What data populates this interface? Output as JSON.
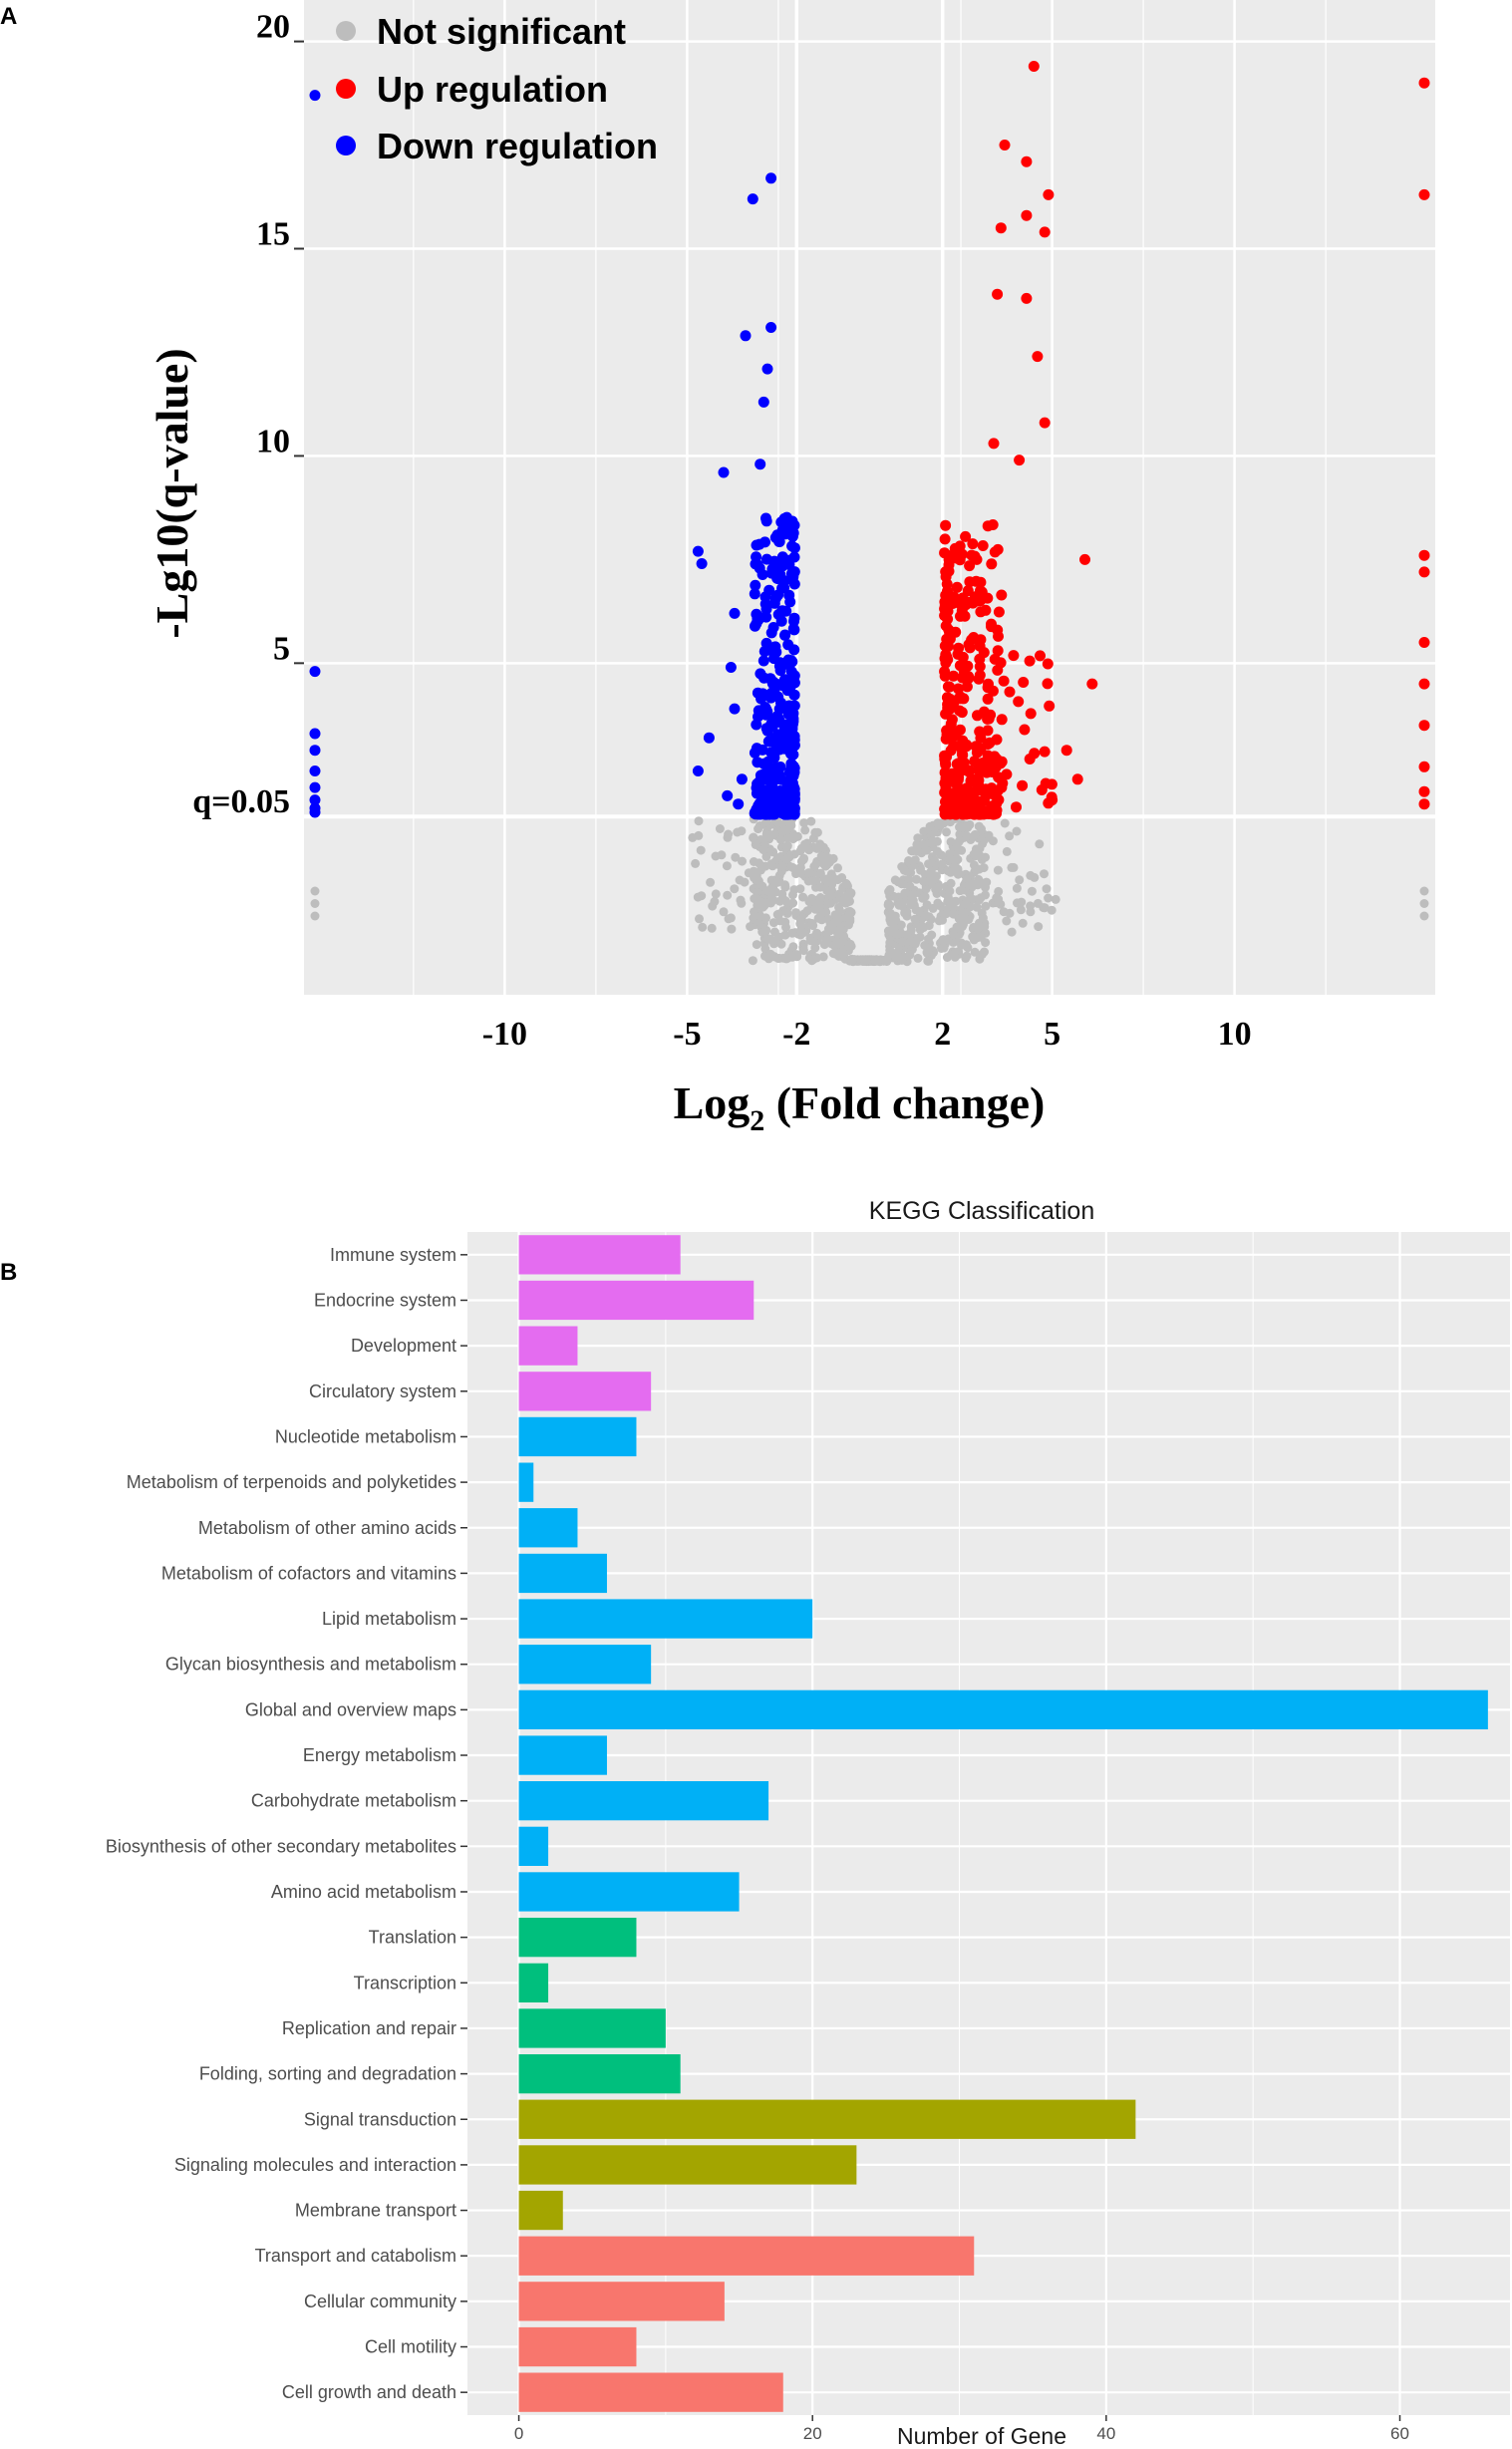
{
  "panels": {
    "a": "A",
    "b": "B"
  },
  "colors": {
    "panel_bg": "#ebebeb",
    "grid": "#ffffff",
    "not_significant": "#bdbdbd",
    "up": "#ff0000",
    "down": "#0000ff",
    "organismal": "#e46cf0",
    "metabolism": "#00b0f6",
    "genetic": "#00bf7d",
    "environmental": "#a3a500",
    "cellular": "#f8766d"
  },
  "chart_data": [
    {
      "id": "volcano",
      "type": "scatter",
      "title": "",
      "xlabel_main": "Log",
      "xlabel_sub": "2",
      "xlabel_rest": " (Fold change)",
      "ylabel": "-Lg10(q-value)",
      "xlim": [
        -15.5,
        15.5
      ],
      "ylim": [
        -3,
        21
      ],
      "x_ticks": [
        "-10",
        "-5",
        "-2",
        "2",
        "5",
        "10"
      ],
      "x_tick_values": [
        -10,
        -5,
        -2,
        2,
        5,
        10
      ],
      "y_ticks": [
        "5",
        "10",
        "15",
        "20"
      ],
      "y_tick_values": [
        5,
        10,
        15,
        20
      ],
      "threshold_label": "q=0.05",
      "threshold_value": 1.3,
      "fold_thresholds": [
        -2,
        2
      ],
      "legend": [
        {
          "label": "Not significant",
          "color": "#bdbdbd"
        },
        {
          "label": "Up regulation",
          "color": "#ff0000"
        },
        {
          "label": "Down regulation",
          "color": "#0000ff"
        }
      ],
      "highlight_points": {
        "down": [
          [
            -15.2,
            18.7
          ],
          [
            -15.2,
            4.8
          ],
          [
            -15.2,
            3.3
          ],
          [
            -15.2,
            2.9
          ],
          [
            -15.2,
            2.4
          ],
          [
            -15.2,
            2.0
          ],
          [
            -15.2,
            1.7
          ],
          [
            -15.2,
            1.5
          ],
          [
            -15.2,
            1.4
          ],
          [
            -2.7,
            16.7
          ],
          [
            -3.2,
            16.2
          ],
          [
            -3.4,
            12.9
          ],
          [
            -2.7,
            13.1
          ],
          [
            -2.8,
            12.1
          ],
          [
            -2.9,
            11.3
          ],
          [
            -4.0,
            9.6
          ],
          [
            -3.0,
            9.8
          ],
          [
            -4.7,
            7.7
          ],
          [
            -4.6,
            7.4
          ],
          [
            -3.7,
            6.2
          ],
          [
            -3.8,
            4.9
          ],
          [
            -3.7,
            3.9
          ],
          [
            -4.4,
            3.2
          ],
          [
            -4.7,
            2.4
          ],
          [
            -3.5,
            2.2
          ],
          [
            -3.9,
            1.8
          ],
          [
            -3.6,
            1.6
          ]
        ],
        "up": [
          [
            4.5,
            19.4
          ],
          [
            15.2,
            19.0
          ],
          [
            15.2,
            16.3
          ],
          [
            4.9,
            16.3
          ],
          [
            3.7,
            17.5
          ],
          [
            4.3,
            17.1
          ],
          [
            4.3,
            15.8
          ],
          [
            3.6,
            15.5
          ],
          [
            4.8,
            15.4
          ],
          [
            3.5,
            13.9
          ],
          [
            4.3,
            13.8
          ],
          [
            4.6,
            12.4
          ],
          [
            4.8,
            10.8
          ],
          [
            4.1,
            9.9
          ],
          [
            3.4,
            10.3
          ],
          [
            5.9,
            7.5
          ],
          [
            15.2,
            7.6
          ],
          [
            15.2,
            7.2
          ],
          [
            6.1,
            4.5
          ],
          [
            15.2,
            5.5
          ],
          [
            15.2,
            4.5
          ],
          [
            15.2,
            3.5
          ],
          [
            15.2,
            2.5
          ],
          [
            5.4,
            2.9
          ],
          [
            15.2,
            1.9
          ],
          [
            15.2,
            1.6
          ],
          [
            5.7,
            2.2
          ],
          [
            5.0,
            1.7
          ]
        ],
        "ns": [
          [
            -15.2,
            -1.1
          ],
          [
            -15.2,
            -0.8
          ],
          [
            -15.2,
            -0.5
          ],
          [
            15.2,
            -1.1
          ],
          [
            15.2,
            -0.8
          ],
          [
            15.2,
            -0.5
          ],
          [
            5.1,
            -0.7
          ],
          [
            4.8,
            -0.9
          ],
          [
            -3.9,
            -0.6
          ],
          [
            -4.0,
            -1.0
          ]
        ]
      }
    },
    {
      "id": "kegg",
      "type": "bar",
      "orientation": "horizontal",
      "title": "KEGG Classification",
      "xlabel": "Number of Gene",
      "ylabel": "",
      "xlim": [
        -3.5,
        67.5
      ],
      "x_ticks": [
        "0",
        "20",
        "40",
        "60"
      ],
      "x_tick_values": [
        0,
        20,
        40,
        60
      ],
      "categories": [
        "Immune system",
        "Endocrine system",
        "Development",
        "Circulatory system",
        "Nucleotide metabolism",
        "Metabolism of terpenoids and polyketides",
        "Metabolism of other amino acids",
        "Metabolism of cofactors and vitamins",
        "Lipid metabolism",
        "Glycan biosynthesis and metabolism",
        "Global and overview maps",
        "Energy metabolism",
        "Carbohydrate metabolism",
        "Biosynthesis of other secondary metabolites",
        "Amino acid metabolism",
        "Translation",
        "Transcription",
        "Replication and repair",
        "Folding, sorting and degradation",
        "Signal transduction",
        "Signaling molecules and interaction",
        "Membrane transport",
        "Transport and catabolism",
        "Cellular community",
        "Cell motility",
        "Cell growth and death"
      ],
      "values": [
        11,
        16,
        4,
        9,
        8,
        1,
        4,
        6,
        20,
        9,
        66,
        6,
        17,
        2,
        15,
        8,
        2,
        10,
        11,
        42,
        23,
        3,
        31,
        14,
        8,
        18
      ],
      "groups": [
        "organismal",
        "organismal",
        "organismal",
        "organismal",
        "metabolism",
        "metabolism",
        "metabolism",
        "metabolism",
        "metabolism",
        "metabolism",
        "metabolism",
        "metabolism",
        "metabolism",
        "metabolism",
        "metabolism",
        "genetic",
        "genetic",
        "genetic",
        "genetic",
        "environmental",
        "environmental",
        "environmental",
        "cellular",
        "cellular",
        "cellular",
        "cellular"
      ]
    }
  ]
}
